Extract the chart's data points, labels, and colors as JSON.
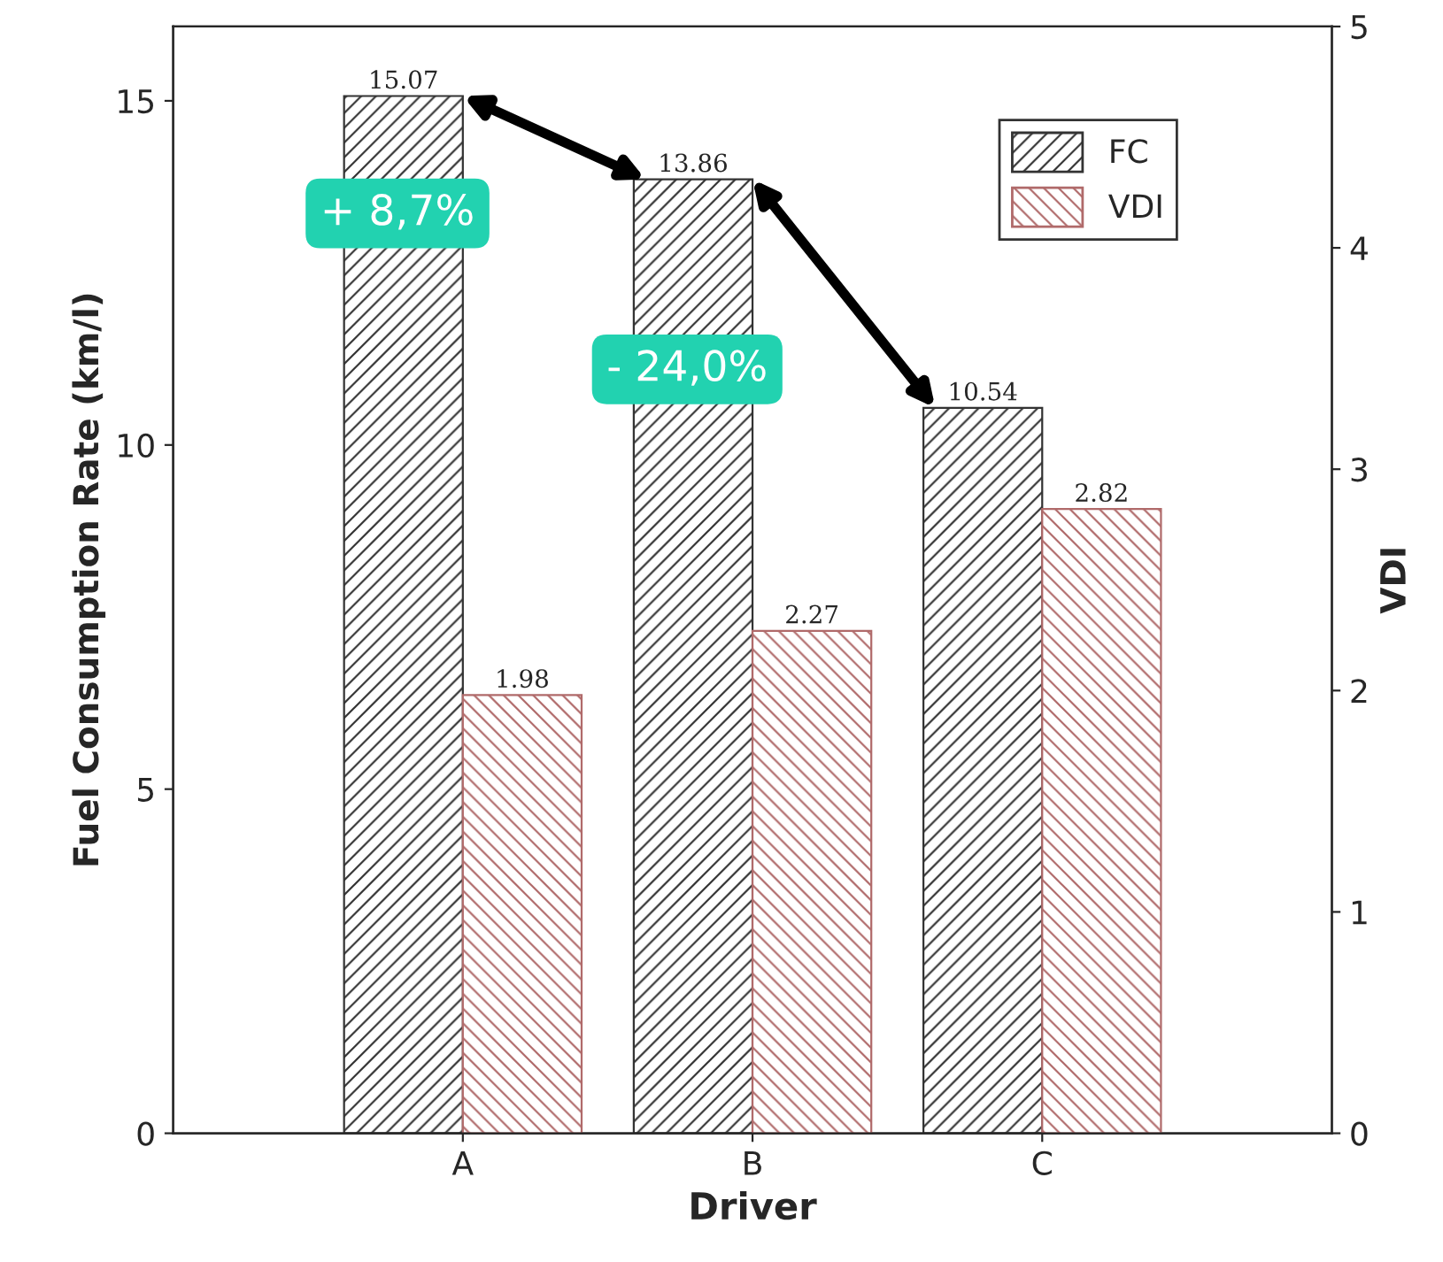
{
  "chart_data": {
    "type": "bar",
    "xlabel": "Driver",
    "ylabel": "Fuel Consumption Rate (km/l)",
    "y2label": "VDI",
    "categories": [
      "A",
      "B",
      "C"
    ],
    "series": [
      {
        "name": "FC",
        "color": "#333333",
        "values": [
          15.07,
          13.86,
          10.54
        ]
      },
      {
        "name": "VDI",
        "color": "#b06a6a",
        "values": [
          1.98,
          2.27,
          2.82
        ],
        "axis": "y2"
      }
    ],
    "ylim": [
      0,
      16.08
    ],
    "yticks": [
      0,
      5,
      10,
      15
    ],
    "y2lim": [
      0,
      5
    ],
    "y2ticks": [
      0,
      1,
      2,
      3,
      4,
      5
    ],
    "data_labels": true,
    "legend": "top right",
    "grid": false,
    "annotations": [
      "+ 8,7%",
      "- 24,0%"
    ]
  }
}
